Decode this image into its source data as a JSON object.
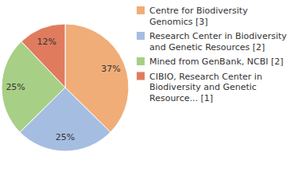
{
  "chart_data": {
    "type": "pie",
    "categories": [
      "Centre for Biodiversity Genomics [3]",
      "Research Center in Biodiversity and Genetic Resources [2]",
      "Mined from GenBank, NCBI [2]",
      "CIBIO, Research Center in Biodiversity and Genetic Resource... [1]"
    ],
    "values": [
      37,
      25,
      25,
      12
    ],
    "value_labels": [
      "37%",
      "25%",
      "25%",
      "12%"
    ],
    "colors": [
      "#f0ad78",
      "#a5bde0",
      "#a8cf86",
      "#e07b5e"
    ],
    "data_labels": true,
    "legend": "top-right"
  }
}
